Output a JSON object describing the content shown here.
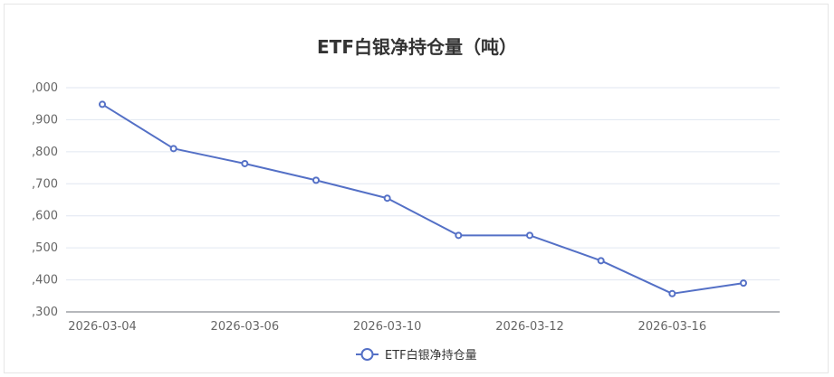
{
  "chart_data": {
    "type": "line",
    "title": "ETF白银净持仓量（吨）",
    "xlabel": "",
    "ylabel": "",
    "x_tick_labels": [
      "2026-03-04",
      "2026-03-06",
      "2026-03-10",
      "2026-03-12",
      "2026-03-16"
    ],
    "y_tick_labels": [
      ",300",
      ",400",
      ",500",
      ",600",
      ",700",
      ",800",
      ",900",
      ",000"
    ],
    "ylim_fraction": [
      0.3,
      1.0
    ],
    "series": [
      {
        "name": "ETF白银净持仓量",
        "color": "#5470c6",
        "values": [
          0.948,
          0.81,
          0.763,
          0.711,
          0.655,
          0.539,
          0.539,
          0.46,
          0.357,
          0.39
        ]
      }
    ],
    "value_unit_note": "",
    "grid": true,
    "legend_position": "bottom-center"
  }
}
